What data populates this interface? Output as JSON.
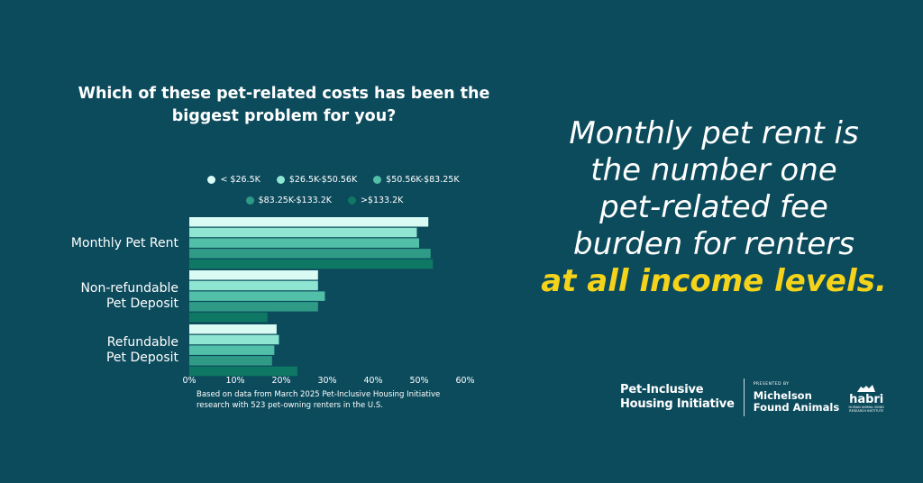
{
  "chart_data": {
    "type": "bar",
    "orientation": "horizontal",
    "title": "Which of these pet-related costs has been the biggest problem for you?",
    "categories": [
      "Monthly Pet Rent",
      "Non-refundable Pet Deposit",
      "Refundable Pet Deposit"
    ],
    "category_lines": [
      [
        "Monthly Pet Rent"
      ],
      [
        "Non-refundable",
        "Pet Deposit"
      ],
      [
        "Refundable",
        "Pet Deposit"
      ]
    ],
    "series": [
      {
        "name": "< $26.5K",
        "color": "#d9fbf4",
        "values": [
          52,
          28,
          19
        ]
      },
      {
        "name": "$26.5K-$50.56K",
        "color": "#8ee5d2",
        "values": [
          49.5,
          28,
          19.5
        ]
      },
      {
        "name": "$50.56K-$83.25K",
        "color": "#52bfa8",
        "values": [
          50,
          29.5,
          18.5
        ]
      },
      {
        "name": "$83.25K-$133.2K",
        "color": "#2f9a86",
        "values": [
          52.5,
          28,
          18
        ]
      },
      {
        "name": ">$133.2K",
        "color": "#0f7864",
        "values": [
          53,
          17,
          23.5
        ]
      }
    ],
    "xlim": [
      0,
      60
    ],
    "xticks": [
      "0%",
      "10%",
      "20%",
      "30%",
      "40%",
      "50%",
      "60%"
    ],
    "grid": false,
    "legend": "top"
  },
  "footnote": "Based on data from March 2025 Pet-Inclusive Housing Initiative research with 523 pet-owning renters in the U.S.",
  "headline": {
    "lines": [
      "Monthly pet rent is",
      "the number one",
      "pet-related fee",
      "burden for renters"
    ],
    "accent": "at all income levels.",
    "accent_color": "#f5d31a"
  },
  "footer": {
    "pihi_line1": "Pet-Inclusive",
    "pihi_line2": "Housing Initiative",
    "presented_by": "PRESENTED BY",
    "mfa_line1": "Michelson",
    "mfa_line2": "Found Animals",
    "habri": "habri",
    "habri_sub": "HUMAN ANIMAL BOND RESEARCH INSTITUTE"
  },
  "colors": {
    "background": "#0c4b5c",
    "text": "#ffffff"
  }
}
